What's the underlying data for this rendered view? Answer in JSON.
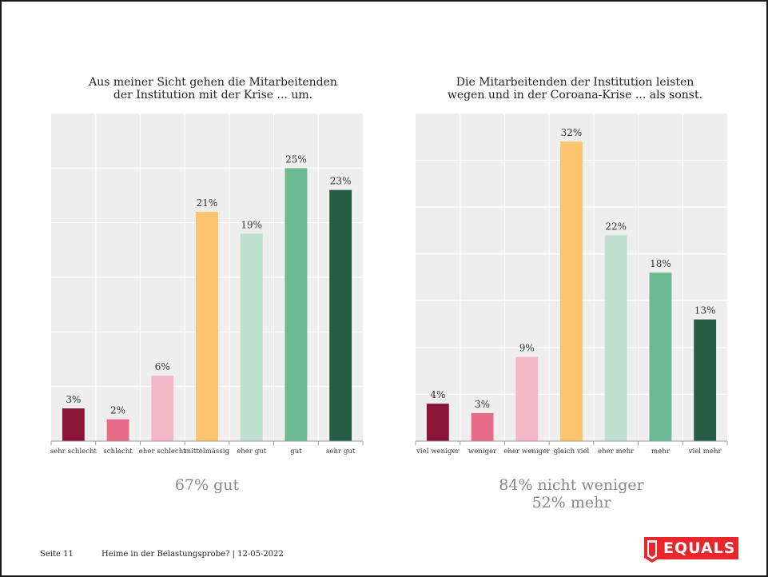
{
  "footer": {
    "page": "Seite 11",
    "text": "Heime in der Belastungsprobe? | 12-05-2022"
  },
  "logo": {
    "text": "EQUALS",
    "color": "#e8262b"
  },
  "chart_data": [
    {
      "type": "bar",
      "title": [
        "Aus meiner Sicht gehen die Mitarbeitenden",
        "der Institution mit der Krise ... um."
      ],
      "categories": [
        "sehr schlecht",
        "schlecht",
        "eher schlecht",
        "mittelmässig",
        "eher gut",
        "gut",
        "sehr gut"
      ],
      "values": [
        3,
        2,
        6,
        21,
        19,
        25,
        23
      ],
      "value_labels": [
        "3%",
        "2%",
        "6%",
        "21%",
        "19%",
        "25%",
        "23%"
      ],
      "colors": [
        "#8b1538",
        "#e86b8a",
        "#f4b8c8",
        "#fcc46c",
        "#bfe0cf",
        "#6bb993",
        "#245e45"
      ],
      "ylim": [
        0,
        30
      ],
      "grid": true,
      "summary": [
        "67% gut"
      ]
    },
    {
      "type": "bar",
      "title": [
        "Die Mitarbeitenden der Institution leisten",
        "wegen und in der Coroana-Krise ... als sonst."
      ],
      "categories": [
        "viel weniger",
        "weniger",
        "eher weniger",
        "gleich viel",
        "eher mehr",
        "mehr",
        "viel mehr"
      ],
      "values": [
        4,
        3,
        9,
        32,
        22,
        18,
        13
      ],
      "value_labels": [
        "4%",
        "3%",
        "9%",
        "32%",
        "22%",
        "18%",
        "13%"
      ],
      "colors": [
        "#8b1538",
        "#e86b8a",
        "#f4b8c8",
        "#fcc46c",
        "#bfe0cf",
        "#6bb993",
        "#245e45"
      ],
      "ylim": [
        0,
        35
      ],
      "grid": true,
      "summary": [
        "84% nicht weniger",
        "52% mehr"
      ]
    }
  ]
}
